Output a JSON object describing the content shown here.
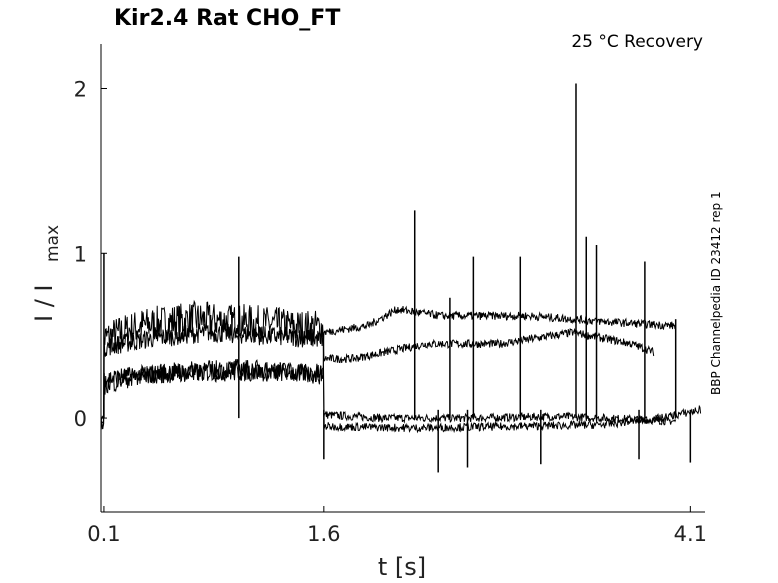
{
  "chart_data": {
    "type": "line",
    "title": "Kir2.4  Rat  CHO_FT",
    "condition": "25 °C  Recovery",
    "xlabel": "t [s]",
    "ylabel_main": "I / I",
    "ylabel_sub": "max",
    "side_note": "BBP Channelpedia ID 23412 rep 1",
    "x_ticks": [
      "0.1",
      "1.6",
      "4.1"
    ],
    "x_tick_values": [
      0.1,
      1.6,
      4.1
    ],
    "y_ticks": [
      "0",
      "1",
      "2"
    ],
    "y_tick_values": [
      0,
      1,
      2
    ],
    "xlim": [
      0.08,
      4.2
    ],
    "ylim": [
      -0.57,
      2.27
    ],
    "grid": false,
    "line_color": "#000000",
    "traces": [
      {
        "x": [
          0.08,
          0.1,
          0.1,
          0.35,
          0.7,
          1.1,
          1.45,
          1.6,
          1.6,
          2.0,
          2.6,
          3.2,
          3.8,
          4.0
        ],
        "y": [
          -0.03,
          -0.05,
          0.48,
          0.56,
          0.6,
          0.58,
          0.55,
          0.55,
          0.02,
          0.0,
          0.0,
          0.01,
          -0.01,
          -0.02
        ]
      },
      {
        "x": [
          0.08,
          0.1,
          0.1,
          0.4,
          0.8,
          1.2,
          1.6,
          1.6,
          1.8,
          2.3,
          2.8,
          3.3,
          3.7,
          3.85
        ],
        "y": [
          -0.04,
          -0.04,
          0.43,
          0.48,
          0.52,
          0.5,
          0.48,
          0.36,
          0.36,
          0.45,
          0.45,
          0.52,
          0.45,
          0.4
        ]
      },
      {
        "x": [
          0.08,
          0.1,
          0.1,
          0.5,
          0.9,
          1.3,
          1.6,
          1.6,
          1.9,
          2.1,
          2.4,
          3.0,
          3.6,
          4.0
        ],
        "y": [
          -0.02,
          -0.03,
          0.24,
          0.27,
          0.28,
          0.28,
          0.26,
          0.52,
          0.56,
          0.66,
          0.62,
          0.62,
          0.58,
          0.56
        ]
      },
      {
        "x": [
          0.08,
          0.1,
          0.1,
          0.3,
          0.6,
          1.0,
          1.4,
          1.6,
          1.6,
          2.2,
          2.9,
          3.5,
          3.9,
          4.17
        ],
        "y": [
          -0.01,
          -0.02,
          0.2,
          0.25,
          0.28,
          0.3,
          0.28,
          0.27,
          -0.05,
          -0.06,
          -0.05,
          -0.04,
          0.0,
          0.05
        ]
      }
    ],
    "spikes": [
      {
        "x": 0.1,
        "y": 1.0
      },
      {
        "x": 1.02,
        "y": 0.98
      },
      {
        "x": 2.22,
        "y": 1.26
      },
      {
        "x": 2.46,
        "y": 0.73
      },
      {
        "x": 2.62,
        "y": 0.98
      },
      {
        "x": 2.94,
        "y": 0.98
      },
      {
        "x": 3.32,
        "y": 2.03
      },
      {
        "x": 3.39,
        "y": 1.1
      },
      {
        "x": 3.46,
        "y": 1.05
      },
      {
        "x": 3.79,
        "y": 0.95
      },
      {
        "x": 4.0,
        "y": 0.6
      }
    ],
    "dips": [
      {
        "x": 1.6,
        "y": -0.25
      },
      {
        "x": 2.38,
        "y": -0.33
      },
      {
        "x": 2.58,
        "y": -0.3
      },
      {
        "x": 3.08,
        "y": -0.28
      },
      {
        "x": 3.75,
        "y": -0.25
      },
      {
        "x": 4.1,
        "y": -0.27
      }
    ]
  }
}
